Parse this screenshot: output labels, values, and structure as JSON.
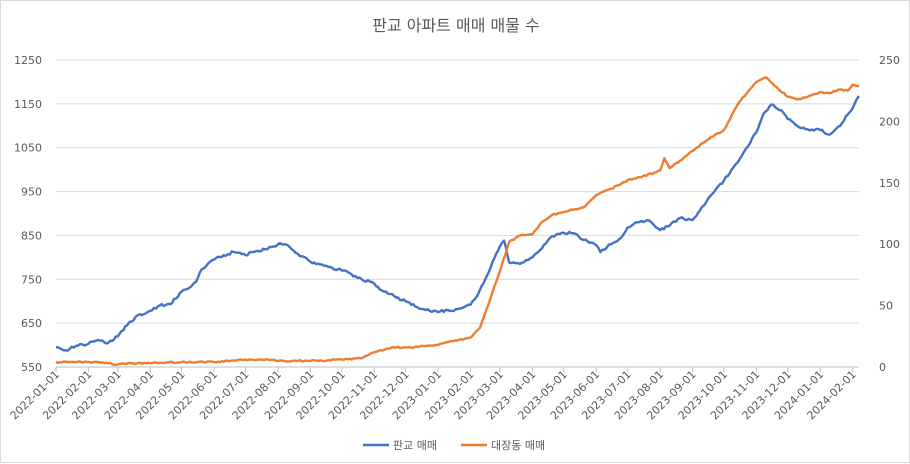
{
  "chart_data": {
    "type": "line",
    "title": "판교 아파트 매매 매물 수",
    "x_tick_labels": [
      "2022-01-01",
      "2022-02-01",
      "2022-03-01",
      "2022-04-01",
      "2022-05-01",
      "2022-06-01",
      "2022-07-01",
      "2022-08-01",
      "2022-09-01",
      "2022-10-01",
      "2022-11-01",
      "2022-12-01",
      "2023-01-01",
      "2023-02-01",
      "2023-03-01",
      "2023-04-01",
      "2023-05-01",
      "2023-06-01",
      "2023-07-01",
      "2023-08-01",
      "2023-09-01",
      "2023-10-01",
      "2023-11-01",
      "2023-12-01",
      "2024-01-01",
      "2024-02-01"
    ],
    "x_range": [
      "2022-01-01",
      "2024-02-07"
    ],
    "y_left": {
      "min": 550,
      "max": 1250,
      "ticks": [
        550,
        650,
        750,
        850,
        950,
        1050,
        1150,
        1250
      ]
    },
    "y_right": {
      "min": 0,
      "max": 250,
      "ticks": [
        0,
        50,
        100,
        150,
        200,
        250
      ]
    },
    "grid": true,
    "legend_position": "bottom",
    "series": [
      {
        "name": "판교 매매",
        "axis": "left",
        "color": "#4472C4",
        "points": [
          [
            "2022-01-01",
            595
          ],
          [
            "2022-01-10",
            588
          ],
          [
            "2022-01-20",
            598
          ],
          [
            "2022-02-01",
            603
          ],
          [
            "2022-02-10",
            612
          ],
          [
            "2022-02-20",
            605
          ],
          [
            "2022-03-01",
            620
          ],
          [
            "2022-03-10",
            645
          ],
          [
            "2022-03-20",
            668
          ],
          [
            "2022-04-01",
            678
          ],
          [
            "2022-04-10",
            690
          ],
          [
            "2022-04-20",
            693
          ],
          [
            "2022-05-01",
            722
          ],
          [
            "2022-05-08",
            730
          ],
          [
            "2022-05-15",
            745
          ],
          [
            "2022-05-20",
            772
          ],
          [
            "2022-06-01",
            795
          ],
          [
            "2022-06-10",
            805
          ],
          [
            "2022-06-20",
            812
          ],
          [
            "2022-07-01",
            805
          ],
          [
            "2022-07-10",
            813
          ],
          [
            "2022-07-20",
            818
          ],
          [
            "2022-08-01",
            830
          ],
          [
            "2022-08-10",
            828
          ],
          [
            "2022-08-20",
            808
          ],
          [
            "2022-09-01",
            790
          ],
          [
            "2022-09-10",
            784
          ],
          [
            "2022-09-20",
            778
          ],
          [
            "2022-10-01",
            770
          ],
          [
            "2022-10-10",
            762
          ],
          [
            "2022-10-20",
            750
          ],
          [
            "2022-11-01",
            740
          ],
          [
            "2022-11-10",
            722
          ],
          [
            "2022-11-20",
            712
          ],
          [
            "2022-12-01",
            700
          ],
          [
            "2022-12-10",
            688
          ],
          [
            "2022-12-20",
            680
          ],
          [
            "2023-01-01",
            675
          ],
          [
            "2023-01-10",
            680
          ],
          [
            "2023-01-20",
            682
          ],
          [
            "2023-02-01",
            692
          ],
          [
            "2023-02-08",
            715
          ],
          [
            "2023-02-15",
            750
          ],
          [
            "2023-02-22",
            790
          ],
          [
            "2023-03-01",
            825
          ],
          [
            "2023-03-05",
            838
          ],
          [
            "2023-03-10",
            788
          ],
          [
            "2023-03-20",
            785
          ],
          [
            "2023-04-01",
            800
          ],
          [
            "2023-04-10",
            820
          ],
          [
            "2023-04-20",
            848
          ],
          [
            "2023-05-01",
            856
          ],
          [
            "2023-05-10",
            855
          ],
          [
            "2023-05-20",
            840
          ],
          [
            "2023-06-01",
            828
          ],
          [
            "2023-06-05",
            812
          ],
          [
            "2023-06-15",
            830
          ],
          [
            "2023-06-25",
            845
          ],
          [
            "2023-07-01",
            868
          ],
          [
            "2023-07-10",
            880
          ],
          [
            "2023-07-20",
            885
          ],
          [
            "2023-08-01",
            862
          ],
          [
            "2023-08-10",
            872
          ],
          [
            "2023-08-20",
            890
          ],
          [
            "2023-09-01",
            885
          ],
          [
            "2023-09-10",
            915
          ],
          [
            "2023-09-20",
            945
          ],
          [
            "2023-10-01",
            975
          ],
          [
            "2023-10-10",
            1005
          ],
          [
            "2023-10-20",
            1040
          ],
          [
            "2023-11-01",
            1085
          ],
          [
            "2023-11-08",
            1128
          ],
          [
            "2023-11-15",
            1148
          ],
          [
            "2023-11-25",
            1135
          ],
          [
            "2023-12-01",
            1115
          ],
          [
            "2023-12-10",
            1100
          ],
          [
            "2023-12-20",
            1092
          ],
          [
            "2024-01-01",
            1090
          ],
          [
            "2024-01-10",
            1080
          ],
          [
            "2024-01-20",
            1100
          ],
          [
            "2024-01-27",
            1125
          ],
          [
            "2024-02-01",
            1140
          ],
          [
            "2024-02-07",
            1168
          ]
        ]
      },
      {
        "name": "대장동 매매",
        "axis": "right",
        "color": "#ED7D31",
        "points": [
          [
            "2022-01-01",
            4
          ],
          [
            "2022-02-01",
            4
          ],
          [
            "2022-02-20",
            3
          ],
          [
            "2022-03-01",
            2
          ],
          [
            "2022-03-15",
            3
          ],
          [
            "2022-04-01",
            3
          ],
          [
            "2022-05-01",
            4
          ],
          [
            "2022-06-01",
            4
          ],
          [
            "2022-07-01",
            6
          ],
          [
            "2022-07-20",
            6
          ],
          [
            "2022-08-01",
            5
          ],
          [
            "2022-09-01",
            5
          ],
          [
            "2022-10-01",
            6
          ],
          [
            "2022-10-20",
            7
          ],
          [
            "2022-11-01",
            12
          ],
          [
            "2022-11-20",
            16
          ],
          [
            "2022-12-01",
            16
          ],
          [
            "2022-12-20",
            17
          ],
          [
            "2023-01-01",
            18
          ],
          [
            "2023-01-15",
            21
          ],
          [
            "2023-02-01",
            24
          ],
          [
            "2023-02-10",
            32
          ],
          [
            "2023-02-20",
            56
          ],
          [
            "2023-03-01",
            78
          ],
          [
            "2023-03-10",
            102
          ],
          [
            "2023-03-20",
            107
          ],
          [
            "2023-04-01",
            108
          ],
          [
            "2023-04-10",
            118
          ],
          [
            "2023-04-20",
            124
          ],
          [
            "2023-05-01",
            126
          ],
          [
            "2023-05-10",
            128
          ],
          [
            "2023-05-20",
            130
          ],
          [
            "2023-06-01",
            140
          ],
          [
            "2023-06-15",
            145
          ],
          [
            "2023-07-01",
            152
          ],
          [
            "2023-07-15",
            155
          ],
          [
            "2023-08-01",
            160
          ],
          [
            "2023-08-05",
            170
          ],
          [
            "2023-08-10",
            162
          ],
          [
            "2023-08-20",
            168
          ],
          [
            "2023-09-01",
            176
          ],
          [
            "2023-09-15",
            185
          ],
          [
            "2023-10-01",
            193
          ],
          [
            "2023-10-15",
            215
          ],
          [
            "2023-11-01",
            232
          ],
          [
            "2023-11-10",
            236
          ],
          [
            "2023-11-20",
            228
          ],
          [
            "2023-12-01",
            220
          ],
          [
            "2023-12-10",
            218
          ],
          [
            "2023-12-20",
            220
          ],
          [
            "2024-01-01",
            224
          ],
          [
            "2024-01-10",
            223
          ],
          [
            "2024-01-20",
            226
          ],
          [
            "2024-01-27",
            225
          ],
          [
            "2024-02-01",
            230
          ],
          [
            "2024-02-07",
            229
          ]
        ]
      }
    ]
  }
}
